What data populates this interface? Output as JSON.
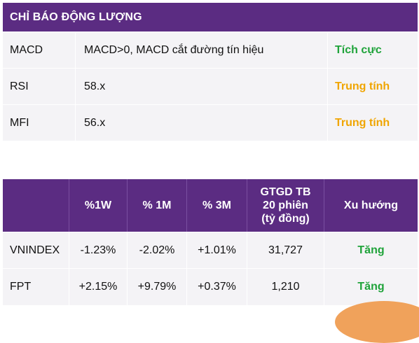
{
  "indicators": {
    "title": "CHỈ BÁO ĐỘNG LƯỢNG",
    "rows": [
      {
        "name": "MACD",
        "description": "MACD>0, MACD cắt đường tín hiệu",
        "status": "Tích cực",
        "status_color": "#1fa33a"
      },
      {
        "name": "RSI",
        "description": "58.x",
        "status": "Trung tính",
        "status_color": "#f0a500"
      },
      {
        "name": "MFI",
        "description": "56.x",
        "status": "Trung tính",
        "status_color": "#f0a500"
      }
    ]
  },
  "performance": {
    "headers": [
      "",
      "%1W",
      "% 1M",
      "% 3M",
      "GTGD TB\n20 phiên\n(tỷ đồng)",
      "Xu hướng"
    ],
    "rows": [
      {
        "name": "VNINDEX",
        "w1": "-1.23%",
        "m1": "-2.02%",
        "m3": "+1.01%",
        "volume": "31,727",
        "trend": "Tăng"
      },
      {
        "name": "FPT",
        "w1": "+2.15%",
        "m1": "+9.79%",
        "m3": "+0.37%",
        "volume": "1,210",
        "trend": "Tăng"
      }
    ],
    "trend_color": "#1fa33a"
  },
  "colors": {
    "header_bg": "#5b2c82",
    "row_bg": "#f4f3f6"
  }
}
